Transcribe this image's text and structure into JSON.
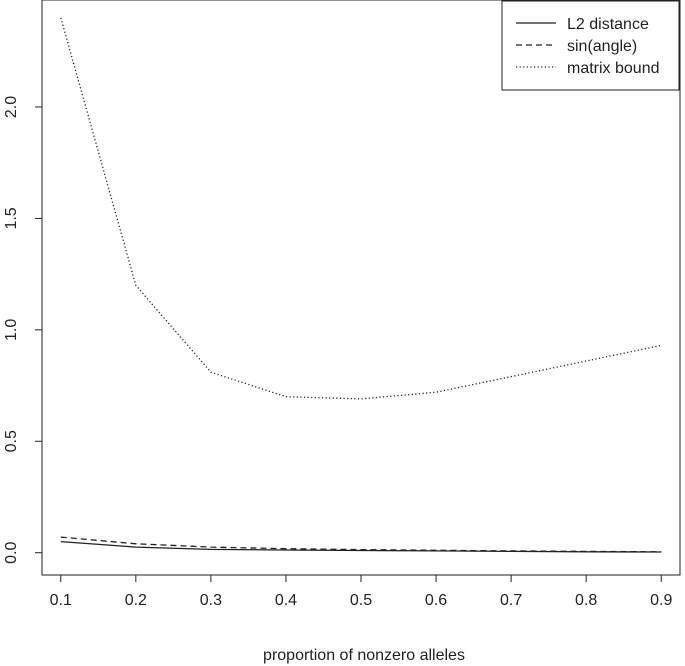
{
  "chart_data": {
    "type": "line",
    "title": "",
    "xlabel": "proportion of nonzero alleles",
    "ylabel": "",
    "x": [
      0.1,
      0.2,
      0.3,
      0.4,
      0.5,
      0.6,
      0.7,
      0.8,
      0.9
    ],
    "xticks": [
      "0.1",
      "0.2",
      "0.3",
      "0.4",
      "0.5",
      "0.6",
      "0.7",
      "0.8",
      "0.9"
    ],
    "yticks": [
      "0.0",
      "0.5",
      "1.0",
      "1.5",
      "2.0"
    ],
    "xlim": [
      0.075,
      0.925
    ],
    "ylim": [
      -0.1,
      2.48
    ],
    "grid": false,
    "legend_position": "top-right",
    "series": [
      {
        "name": "L2 distance",
        "line_style": "solid",
        "color": "#222222",
        "values": [
          0.05,
          0.025,
          0.015,
          0.012,
          0.01,
          0.008,
          0.006,
          0.004,
          0.003
        ]
      },
      {
        "name": "sin(angle)",
        "line_style": "dashed",
        "color": "#222222",
        "values": [
          0.07,
          0.04,
          0.025,
          0.018,
          0.014,
          0.011,
          0.008,
          0.006,
          0.004
        ]
      },
      {
        "name": "matrix bound",
        "line_style": "dotted",
        "color": "#222222",
        "values": [
          2.4,
          1.2,
          0.81,
          0.7,
          0.69,
          0.72,
          0.79,
          0.86,
          0.93
        ]
      }
    ]
  }
}
